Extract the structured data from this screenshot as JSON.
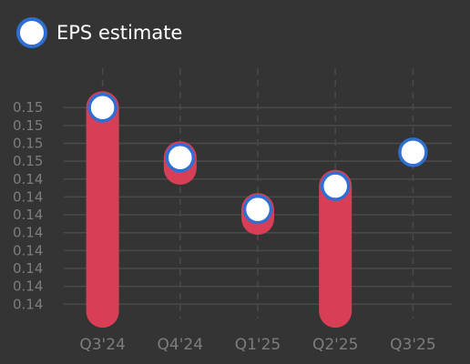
{
  "legend": {
    "label": "EPS estimate"
  },
  "colors": {
    "background": "#343434",
    "grid": "#4a4a4a",
    "axis_text": "#7d7d7d",
    "beat": "#2fce97",
    "miss": "#d83f56",
    "estimate_fill": "#ffffff",
    "estimate_border": "#2f6fd1"
  },
  "chart_data": {
    "type": "bar",
    "categories": [
      "Q3'24",
      "Q4'24",
      "Q1'25",
      "Q2'25",
      "Q3'25"
    ],
    "ylim": [
      0.1392,
      0.1532
    ],
    "y_ticks": [
      0.14,
      0.141,
      0.142,
      0.143,
      0.144,
      0.145,
      0.146,
      0.147,
      0.148,
      0.149,
      0.15,
      0.151
    ],
    "y_tick_labels": [
      "0.14",
      "0.14",
      "0.14",
      "0.14",
      "0.14",
      "0.14",
      "0.14",
      "0.14",
      "0.15",
      "0.15",
      "0.15",
      "0.15"
    ],
    "grid": true,
    "legend_position": "top-left",
    "series": [
      {
        "name": "EPS estimate",
        "values": [
          0.151,
          0.1482,
          0.1453,
          0.1466,
          0.1485
        ]
      },
      {
        "values": [
          0.1396,
          0.1476,
          0.1448,
          0.1396,
          null
        ]
      }
    ]
  }
}
